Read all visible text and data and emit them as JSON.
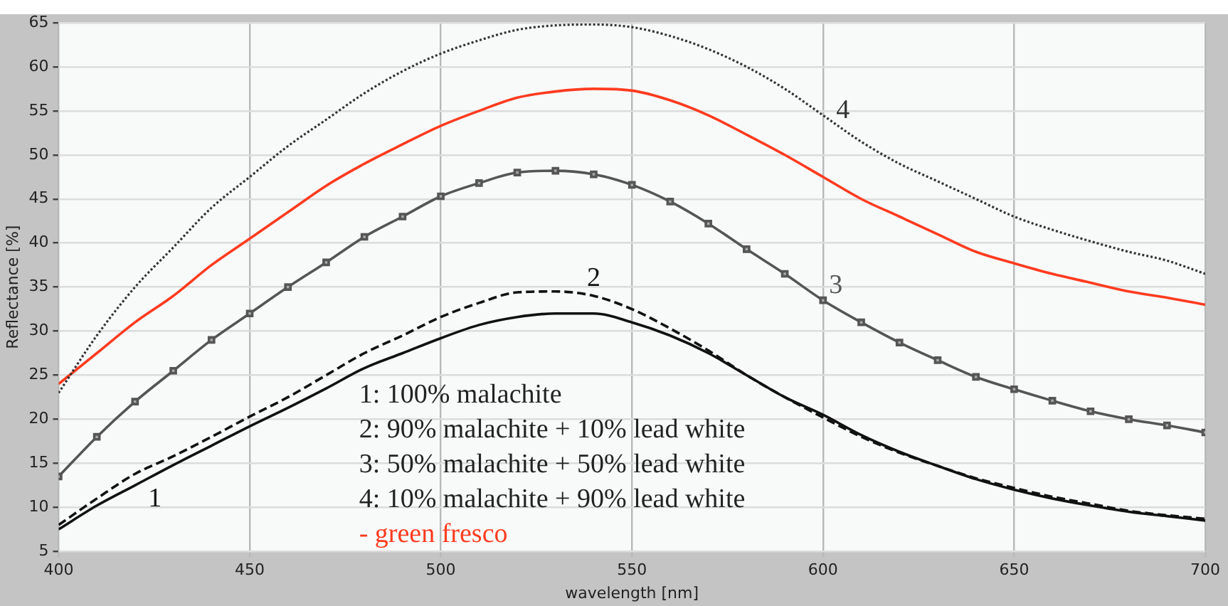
{
  "chart_data": {
    "type": "line",
    "xlabel": "wavelength [nm]",
    "ylabel": "Reflectance [%]",
    "x": [
      400,
      410,
      420,
      430,
      440,
      450,
      460,
      470,
      480,
      490,
      500,
      510,
      520,
      530,
      540,
      550,
      560,
      570,
      580,
      590,
      600,
      610,
      620,
      630,
      640,
      650,
      660,
      670,
      680,
      690,
      700
    ],
    "xlim": [
      400,
      700
    ],
    "xticks": [
      400,
      450,
      500,
      550,
      600,
      650,
      700
    ],
    "ylim": [
      5,
      65
    ],
    "yticks": [
      5,
      10,
      15,
      20,
      25,
      30,
      35,
      40,
      45,
      50,
      55,
      60,
      65
    ],
    "grid": true,
    "marker": "none",
    "series": [
      {
        "name": "4",
        "color": "#333333",
        "line_style": "dotted",
        "values": [
          23,
          29.5,
          35,
          39.5,
          44,
          47.5,
          51,
          54,
          57,
          59.5,
          61.5,
          63,
          64.2,
          64.7,
          64.8,
          64.5,
          63.5,
          62,
          60,
          57.5,
          54.5,
          51.5,
          49,
          47,
          45,
          43,
          41.5,
          40.2,
          39,
          38,
          36.5
        ]
      },
      {
        "name": "- green fresco",
        "color": "#ff3b1f",
        "line_style": "solid",
        "values": [
          24,
          27.5,
          31,
          34,
          37.5,
          40.5,
          43.5,
          46.5,
          49,
          51.2,
          53.3,
          55,
          56.5,
          57.2,
          57.5,
          57.3,
          56.2,
          54.5,
          52.3,
          50,
          47.5,
          45,
          43,
          41,
          39,
          37.7,
          36.5,
          35.5,
          34.5,
          33.8,
          33
        ]
      },
      {
        "name": "3",
        "color": "#555555",
        "line_style": "solid",
        "marker": "square",
        "values": [
          13.5,
          18,
          22,
          25.5,
          29,
          32,
          35,
          37.8,
          40.7,
          43,
          45.3,
          46.8,
          48,
          48.2,
          47.8,
          46.6,
          44.7,
          42.2,
          39.3,
          36.5,
          33.5,
          31,
          28.7,
          26.7,
          24.8,
          23.4,
          22.1,
          20.9,
          20,
          19.3,
          18.5
        ]
      },
      {
        "name": "2",
        "color": "#111111",
        "line_style": "dashed",
        "values": [
          8,
          11,
          13.8,
          15.8,
          18,
          20.3,
          22.5,
          25,
          27.5,
          29.5,
          31.6,
          33.2,
          34.4,
          34.5,
          34,
          32.5,
          30.3,
          27.8,
          25,
          22.5,
          20.2,
          18,
          16.2,
          14.7,
          13.3,
          12.2,
          11.2,
          10.4,
          9.6,
          9.1,
          8.7
        ]
      },
      {
        "name": "1",
        "color": "#111111",
        "line_style": "solid",
        "values": [
          7.5,
          10.2,
          12.5,
          14.8,
          17,
          19.2,
          21.3,
          23.5,
          25.8,
          27.5,
          29.2,
          30.7,
          31.6,
          32,
          32,
          31,
          29.5,
          27.5,
          25,
          22.5,
          20.5,
          18.2,
          16.3,
          14.7,
          13.2,
          12,
          11,
          10.2,
          9.5,
          9,
          8.5
        ]
      }
    ],
    "annotations": [
      "1: 100% malachite",
      "2: 90% malachite + 10% lead white",
      "3: 50% malachite + 50% lead white",
      "4: 10% malachite + 90% lead white"
    ]
  }
}
